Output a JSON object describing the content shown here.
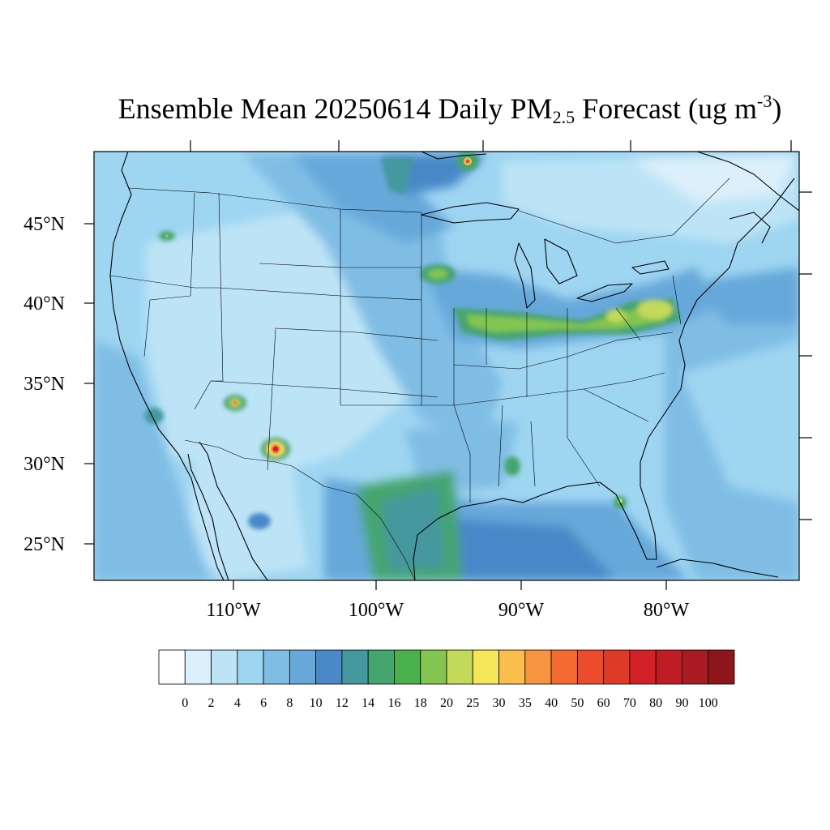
{
  "map": {
    "title_prefix": "Ensemble Mean 20250614 Daily PM",
    "title_sub": "2.5",
    "title_mid": " Forecast (ug m",
    "title_sup": "-3",
    "title_end": ")",
    "lat_labels": [
      "45°N",
      "40°N",
      "35°N",
      "30°N",
      "25°N"
    ],
    "lon_labels": [
      "110°W",
      "100°W",
      "90°W",
      "80°W"
    ]
  },
  "colorbar": {
    "colors": [
      "#ffffff",
      "#dbf0fa",
      "#bde4f6",
      "#9ed5f1",
      "#80bde5",
      "#66a8da",
      "#4a88c8",
      "#45989e",
      "#45a56e",
      "#49b04c",
      "#83c550",
      "#c2d95a",
      "#f5e65a",
      "#f9be4c",
      "#f79440",
      "#f46a30",
      "#ec4c2c",
      "#df3a28",
      "#d22228",
      "#bf1c25",
      "#aa1a22",
      "#8e1519"
    ],
    "labels": [
      "0",
      "2",
      "4",
      "6",
      "8",
      "10",
      "12",
      "14",
      "16",
      "18",
      "20",
      "25",
      "30",
      "35",
      "40",
      "50",
      "60",
      "70",
      "80",
      "90",
      "100"
    ]
  }
}
